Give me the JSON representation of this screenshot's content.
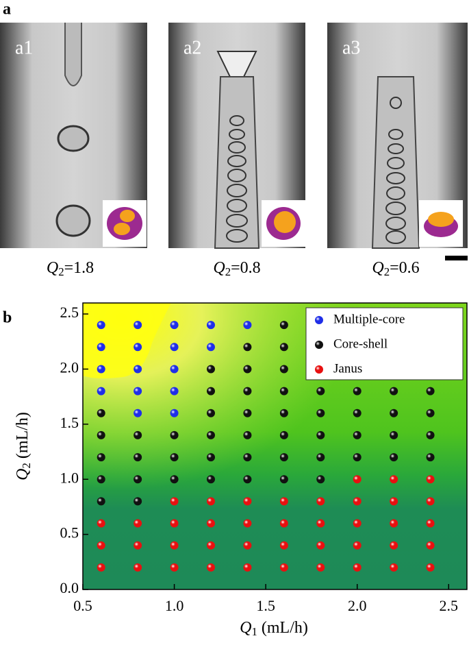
{
  "panel_labels": [
    "a",
    "b"
  ],
  "images": [
    {
      "label": "a1",
      "caption": {
        "symbol": "Q",
        "subscript": "2",
        "text": "=1.8"
      }
    },
    {
      "label": "a2",
      "caption": {
        "symbol": "Q",
        "subscript": "2",
        "text": "=0.8"
      }
    },
    {
      "label": "a3",
      "caption": {
        "symbol": "Q",
        "subscript": "2",
        "text": "=0.6"
      }
    }
  ],
  "chart_data": {
    "type": "scatter",
    "x_label": {
      "symbol": "Q",
      "subscript": "1",
      "text": " (mL/h)"
    },
    "y_label": {
      "symbol": "Q",
      "subscript": "2",
      "text": " (mL/h)"
    },
    "xlim": [
      0.5,
      2.6
    ],
    "ylim": [
      0,
      2.6
    ],
    "xticks": [
      0.5,
      {
        "value": 1,
        "label": "1.0"
      },
      1.5,
      {
        "value": 2,
        "label": "2.0"
      },
      2.5
    ],
    "yticks": [
      {
        "value": 0,
        "label": "0.0"
      },
      0.5,
      {
        "value": 1,
        "label": "1.0"
      },
      1.5,
      {
        "value": 2,
        "label": "2.0"
      },
      2.5
    ],
    "legend": "upper right",
    "series": [
      {
        "name": "Multiple-core",
        "color": "#1f2ee8",
        "x": [
          0.6,
          0.6,
          0.6,
          0.6,
          0.8,
          0.8,
          0.8,
          0.8,
          0.8,
          1.0,
          1.0,
          1.0,
          1.0,
          1.0,
          1.2,
          1.2,
          1.4
        ],
        "y": [
          1.8,
          2.0,
          2.2,
          2.4,
          1.6,
          1.8,
          2.0,
          2.2,
          2.4,
          1.6,
          1.8,
          2.0,
          2.2,
          2.4,
          2.2,
          2.4,
          2.4
        ]
      },
      {
        "name": "Core-shell",
        "color": "#111111",
        "x": [
          0.6,
          0.6,
          0.6,
          0.6,
          0.6,
          0.8,
          0.8,
          0.8,
          0.8,
          1.0,
          1.0,
          1.0,
          1.2,
          1.2,
          1.2,
          1.2,
          1.2,
          1.2,
          1.4,
          1.4,
          1.4,
          1.4,
          1.4,
          1.4,
          1.4,
          1.6,
          1.6,
          1.6,
          1.6,
          1.6,
          1.6,
          1.6,
          1.6,
          1.8,
          1.8,
          1.8,
          1.8,
          1.8,
          2.0,
          2.0,
          2.0,
          2.0,
          2.2,
          2.2,
          2.2,
          2.2,
          2.4,
          2.4,
          2.4,
          2.4
        ],
        "y": [
          0.8,
          1.0,
          1.2,
          1.4,
          1.6,
          0.8,
          1.0,
          1.2,
          1.4,
          1.0,
          1.2,
          1.4,
          1.0,
          1.2,
          1.4,
          1.6,
          1.8,
          2.0,
          1.0,
          1.2,
          1.4,
          1.6,
          1.8,
          2.0,
          2.2,
          1.0,
          1.2,
          1.4,
          1.6,
          1.8,
          2.0,
          2.2,
          2.4,
          1.0,
          1.2,
          1.4,
          1.6,
          1.8,
          1.2,
          1.4,
          1.6,
          1.8,
          1.2,
          1.4,
          1.6,
          1.8,
          1.2,
          1.4,
          1.6,
          1.8
        ]
      },
      {
        "name": "Janus",
        "color": "#e81010",
        "x": [
          0.6,
          0.6,
          0.6,
          0.8,
          0.8,
          0.8,
          1.0,
          1.0,
          1.0,
          1.0,
          1.2,
          1.2,
          1.2,
          1.2,
          1.4,
          1.4,
          1.4,
          1.4,
          1.6,
          1.6,
          1.6,
          1.6,
          1.8,
          1.8,
          1.8,
          1.8,
          2.0,
          2.0,
          2.0,
          2.0,
          2.0,
          2.2,
          2.2,
          2.2,
          2.2,
          2.2,
          2.4,
          2.4,
          2.4,
          2.4,
          2.4
        ],
        "y": [
          0.2,
          0.4,
          0.6,
          0.2,
          0.4,
          0.6,
          0.2,
          0.4,
          0.6,
          0.8,
          0.2,
          0.4,
          0.6,
          0.8,
          0.2,
          0.4,
          0.6,
          0.8,
          0.2,
          0.4,
          0.6,
          0.8,
          0.2,
          0.4,
          0.6,
          0.8,
          0.2,
          0.4,
          0.6,
          0.8,
          1.0,
          0.2,
          0.4,
          0.6,
          0.8,
          1.0,
          0.2,
          0.4,
          0.6,
          0.8,
          1.0
        ]
      }
    ]
  }
}
